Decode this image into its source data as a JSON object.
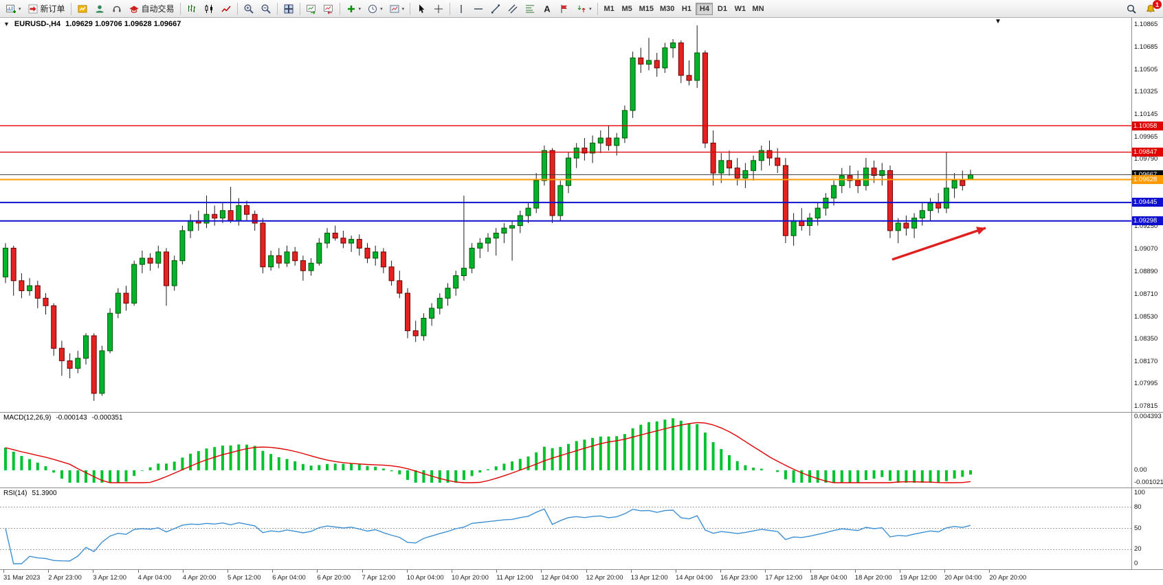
{
  "toolbar": {
    "new_order_label": "新订单",
    "autotrading_label": "自动交易",
    "timeframes": [
      "M1",
      "M5",
      "M15",
      "M30",
      "H1",
      "H4",
      "D1",
      "W1",
      "MN"
    ],
    "active_timeframe": "H4",
    "notification_badge": "1"
  },
  "chart_window": {
    "title_symbol": "EURUSD-,H4",
    "title_ohlc": "1.09629 1.09706 1.09628 1.09667"
  },
  "chart_data": {
    "type": "candlestick",
    "symbol": "EURUSD-",
    "timeframe": "H4",
    "ohlc": {
      "open": "1.09629",
      "high": "1.09706",
      "low": "1.09628",
      "close": "1.09667"
    },
    "colors": {
      "up": "#00b32c",
      "up_border": "#005500",
      "down": "#e32222",
      "down_border": "#6b0000",
      "wick": "#1a1a1a"
    },
    "price_axis": {
      "max": 1.10865,
      "min": 1.07815,
      "ticks": [
        "1.10865",
        "1.10685",
        "1.10505",
        "1.10325",
        "1.10145",
        "1.09965",
        "1.09790",
        "1.09610",
        "1.09430",
        "1.09250",
        "1.09070",
        "1.08890",
        "1.08710",
        "1.08530",
        "1.08350",
        "1.08170",
        "1.07995",
        "1.07815"
      ]
    },
    "hlines": [
      {
        "label": "1.10058",
        "price": 1.10058,
        "color": "#e00000",
        "badge": "#e00000",
        "width": 1.4
      },
      {
        "label": "1.09847",
        "price": 1.09847,
        "color": "#e00000",
        "badge": "#e00000",
        "width": 1.4
      },
      {
        "label": "1.09667",
        "price": 1.09667,
        "color": "#3a3a3a",
        "badge": "#0a0a0a",
        "width": 1
      },
      {
        "label": "1.09628",
        "price": 1.09628,
        "color": "#ff9a00",
        "badge": "#ff9a00",
        "width": 2
      },
      {
        "label": "1.09445",
        "price": 1.09445,
        "color": "#0f0fd0",
        "badge": "#0f0fd0",
        "width": 2
      },
      {
        "label": "1.09298",
        "price": 1.09298,
        "color": "#0f0fd0",
        "badge": "#0f0fd0",
        "width": 2
      }
    ],
    "candles": [
      [
        1.0885,
        1.0912,
        1.088,
        1.0908
      ],
      [
        1.0908,
        1.091,
        1.087,
        1.0882
      ],
      [
        1.0882,
        1.0888,
        1.0868,
        1.0874
      ],
      [
        1.0874,
        1.0884,
        1.087,
        1.0878
      ],
      [
        1.0878,
        1.0882,
        1.086,
        1.0868
      ],
      [
        1.0868,
        1.0872,
        1.0855,
        1.0862
      ],
      [
        1.0862,
        1.0864,
        1.0822,
        1.0828
      ],
      [
        1.0828,
        1.0834,
        1.0806,
        1.0818
      ],
      [
        1.0818,
        1.0824,
        1.0804,
        1.0812
      ],
      [
        1.0812,
        1.0826,
        1.0808,
        1.082
      ],
      [
        1.082,
        1.084,
        1.0815,
        1.0838
      ],
      [
        1.0838,
        1.084,
        1.0786,
        1.0792
      ],
      [
        1.0792,
        1.083,
        1.079,
        1.0826
      ],
      [
        1.0826,
        1.086,
        1.0824,
        1.0856
      ],
      [
        1.0856,
        1.0876,
        1.0852,
        1.0872
      ],
      [
        1.0872,
        1.0878,
        1.0858,
        1.0864
      ],
      [
        1.0864,
        1.0898,
        1.0862,
        1.0895
      ],
      [
        1.0895,
        1.0906,
        1.0888,
        1.09
      ],
      [
        1.09,
        1.0904,
        1.089,
        1.0896
      ],
      [
        1.0896,
        1.091,
        1.0892,
        1.0905
      ],
      [
        1.0905,
        1.0908,
        1.0862,
        1.0878
      ],
      [
        1.0878,
        1.0902,
        1.0874,
        1.0898
      ],
      [
        1.0898,
        1.0926,
        1.0895,
        1.0922
      ],
      [
        1.0922,
        1.0935,
        1.0916,
        1.093
      ],
      [
        1.093,
        1.0938,
        1.0922,
        1.0928
      ],
      [
        1.0928,
        1.095,
        1.0924,
        1.0935
      ],
      [
        1.0935,
        1.0942,
        1.0926,
        1.0932
      ],
      [
        1.0932,
        1.0944,
        1.0928,
        1.0938
      ],
      [
        1.0938,
        1.0957,
        1.0928,
        1.093
      ],
      [
        1.093,
        1.0948,
        1.0926,
        1.0942
      ],
      [
        1.0942,
        1.0946,
        1.093,
        1.0935
      ],
      [
        1.0935,
        1.0938,
        1.0922,
        1.0928
      ],
      [
        1.0928,
        1.0932,
        1.0888,
        1.0893
      ],
      [
        1.0893,
        1.0906,
        1.089,
        1.0902
      ],
      [
        1.0902,
        1.0908,
        1.0892,
        1.0896
      ],
      [
        1.0896,
        1.091,
        1.0893,
        1.0905
      ],
      [
        1.0905,
        1.0909,
        1.0894,
        1.0898
      ],
      [
        1.0898,
        1.0902,
        1.0882,
        1.089
      ],
      [
        1.089,
        1.09,
        1.0886,
        1.0896
      ],
      [
        1.0896,
        1.0916,
        1.0894,
        1.0912
      ],
      [
        1.0912,
        1.0924,
        1.0908,
        1.092
      ],
      [
        1.092,
        1.0926,
        1.0914,
        1.0916
      ],
      [
        1.0916,
        1.0922,
        1.0908,
        1.0912
      ],
      [
        1.0912,
        1.0918,
        1.0905,
        1.0915
      ],
      [
        1.0915,
        1.0919,
        1.0902,
        1.0908
      ],
      [
        1.0908,
        1.0912,
        1.0896,
        1.09
      ],
      [
        1.09,
        1.091,
        1.0894,
        1.0905
      ],
      [
        1.0905,
        1.0908,
        1.0888,
        1.0893
      ],
      [
        1.0893,
        1.0898,
        1.0878,
        1.0882
      ],
      [
        1.0882,
        1.089,
        1.0868,
        1.0872
      ],
      [
        1.0872,
        1.0876,
        1.0836,
        1.0842
      ],
      [
        1.0842,
        1.085,
        1.0833,
        1.0838
      ],
      [
        1.0838,
        1.0856,
        1.0834,
        1.0852
      ],
      [
        1.0852,
        1.0864,
        1.0846,
        1.086
      ],
      [
        1.086,
        1.0872,
        1.0855,
        1.0868
      ],
      [
        1.0868,
        1.088,
        1.0862,
        1.0876
      ],
      [
        1.0876,
        1.089,
        1.087,
        1.0886
      ],
      [
        1.0886,
        1.095,
        1.0882,
        1.0892
      ],
      [
        1.0892,
        1.0912,
        1.0888,
        1.0908
      ],
      [
        1.0908,
        1.0916,
        1.09,
        1.0912
      ],
      [
        1.0912,
        1.092,
        1.0905,
        1.0916
      ],
      [
        1.0916,
        1.0924,
        1.0902,
        1.092
      ],
      [
        1.092,
        1.0928,
        1.0912,
        1.0924
      ],
      [
        1.0924,
        1.093,
        1.0898,
        1.0926
      ],
      [
        1.0926,
        1.0938,
        1.092,
        1.0934
      ],
      [
        1.0934,
        1.0944,
        1.0928,
        1.094
      ],
      [
        1.094,
        1.0968,
        1.0936,
        1.0962
      ],
      [
        1.0962,
        1.099,
        1.0958,
        1.0986
      ],
      [
        1.0986,
        1.0988,
        1.0928,
        1.0934
      ],
      [
        1.0934,
        1.0962,
        1.093,
        1.0958
      ],
      [
        1.0958,
        1.0985,
        1.0952,
        1.098
      ],
      [
        1.098,
        1.0992,
        1.0972,
        1.0988
      ],
      [
        1.0988,
        1.0996,
        1.0978,
        1.0984
      ],
      [
        1.0984,
        1.0998,
        1.0976,
        1.0992
      ],
      [
        1.0992,
        1.1002,
        1.0984,
        1.0996
      ],
      [
        1.0996,
        1.1006,
        1.0986,
        1.099
      ],
      [
        1.099,
        1.1,
        1.0982,
        1.0996
      ],
      [
        1.0996,
        1.1022,
        1.0992,
        1.1018
      ],
      [
        1.1018,
        1.1065,
        1.1012,
        1.106
      ],
      [
        1.106,
        1.1068,
        1.1048,
        1.1055
      ],
      [
        1.1055,
        1.1076,
        1.105,
        1.1058
      ],
      [
        1.1058,
        1.1064,
        1.1045,
        1.1052
      ],
      [
        1.1052,
        1.1072,
        1.1048,
        1.1068
      ],
      [
        1.1068,
        1.1075,
        1.106,
        1.1072
      ],
      [
        1.1072,
        1.1074,
        1.104,
        1.1046
      ],
      [
        1.1046,
        1.1058,
        1.1038,
        1.1042
      ],
      [
        1.1042,
        1.1086,
        1.1036,
        1.1064
      ],
      [
        1.1064,
        1.1066,
        1.0988,
        1.0992
      ],
      [
        1.0992,
        1.1002,
        1.0958,
        1.0968
      ],
      [
        1.0968,
        1.0984,
        1.096,
        1.0978
      ],
      [
        1.0978,
        1.0986,
        1.0966,
        1.0972
      ],
      [
        1.0972,
        1.098,
        1.0958,
        1.0964
      ],
      [
        1.0964,
        1.0976,
        1.0956,
        1.097
      ],
      [
        1.097,
        1.0982,
        1.0962,
        1.0978
      ],
      [
        1.0978,
        1.099,
        1.097,
        1.0986
      ],
      [
        1.0986,
        1.0994,
        1.0974,
        1.098
      ],
      [
        1.098,
        1.0988,
        1.0968,
        1.0974
      ],
      [
        1.0974,
        1.098,
        1.0912,
        1.0918
      ],
      [
        1.0918,
        1.0936,
        1.091,
        1.093
      ],
      [
        1.093,
        1.094,
        1.0922,
        1.0926
      ],
      [
        1.0926,
        1.0936,
        1.0918,
        1.0932
      ],
      [
        1.0932,
        1.0944,
        1.0926,
        1.094
      ],
      [
        1.094,
        1.0952,
        1.0934,
        1.0948
      ],
      [
        1.0948,
        1.0962,
        1.0942,
        1.0958
      ],
      [
        1.0958,
        1.0972,
        1.0952,
        1.0966
      ],
      [
        1.0966,
        1.0974,
        1.0956,
        1.0962
      ],
      [
        1.0962,
        1.097,
        1.0952,
        1.0958
      ],
      [
        1.0958,
        1.098,
        1.0954,
        1.0972
      ],
      [
        1.0972,
        1.0978,
        1.096,
        1.0966
      ],
      [
        1.0966,
        1.0976,
        1.0958,
        1.097
      ],
      [
        1.097,
        1.0974,
        1.0916,
        1.0922
      ],
      [
        1.0922,
        1.0932,
        1.0912,
        1.0928
      ],
      [
        1.0928,
        1.0934,
        1.0918,
        1.0924
      ],
      [
        1.0924,
        1.0936,
        1.0916,
        1.0932
      ],
      [
        1.0932,
        1.0944,
        1.0926,
        1.0938
      ],
      [
        1.0938,
        1.0948,
        1.093,
        1.0944
      ],
      [
        1.0944,
        1.0952,
        1.0936,
        1.094
      ],
      [
        1.094,
        1.0985,
        1.0936,
        1.0956
      ],
      [
        1.0956,
        1.0968,
        1.0948,
        1.0962
      ],
      [
        1.0962,
        1.097,
        1.0954,
        1.0958
      ],
      [
        1.09629,
        1.09706,
        1.09628,
        1.09667
      ]
    ],
    "time_axis": [
      "31 Mar 2023",
      "2 Apr 23:00",
      "3 Apr 12:00",
      "4 Apr 04:00",
      "4 Apr 20:00",
      "5 Apr 12:00",
      "6 Apr 04:00",
      "6 Apr 20:00",
      "7 Apr 12:00",
      "10 Apr 04:00",
      "10 Apr 20:00",
      "11 Apr 12:00",
      "12 Apr 04:00",
      "12 Apr 20:00",
      "13 Apr 12:00",
      "14 Apr 04:00",
      "16 Apr 23:00",
      "17 Apr 12:00",
      "18 Apr 04:00",
      "18 Apr 20:00",
      "19 Apr 12:00",
      "20 Apr 04:00",
      "20 Apr 20:00"
    ],
    "annotation_arrow": {
      "from": [
        1298,
        352
      ],
      "to": [
        1434,
        306
      ],
      "color": "#e02020"
    },
    "macd": {
      "name": "MACD(12,26,9)",
      "value_main": "-0.000143",
      "value_signal": "-0.000351",
      "fast": 12,
      "slow": 26,
      "signal_period": 9,
      "axis_labels": [
        "0.004393",
        "0.00",
        "-0.001021"
      ],
      "scale_max": 0.004393,
      "scale_min": -0.001021,
      "hist_color": "#00c22e",
      "signal_color": "#e00000"
    },
    "rsi": {
      "name": "RSI(14)",
      "value": "51.3900",
      "period": 14,
      "axis_labels": [
        "100",
        "80",
        "50",
        "20",
        "0"
      ],
      "axis_values": [
        100,
        80,
        50,
        20,
        0
      ],
      "levels": [
        80,
        50,
        20
      ],
      "line_color": "#3d8fd4"
    }
  }
}
